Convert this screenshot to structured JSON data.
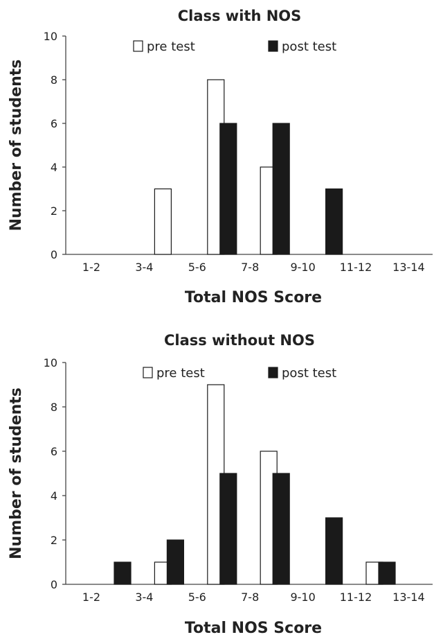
{
  "chart_data": [
    {
      "type": "bar",
      "title": "Class with NOS",
      "xlabel": "Total NOS Score",
      "ylabel": "Number of students",
      "categories": [
        "1-2",
        "3-4",
        "5-6",
        "7-8",
        "9-10",
        "11-12",
        "13-14"
      ],
      "ylim": [
        0,
        10
      ],
      "yticks": [
        0,
        2,
        4,
        6,
        8,
        10
      ],
      "grid": false,
      "legend_position": "top",
      "series": [
        {
          "name": "pre test",
          "fill": "#ffffff",
          "values": [
            0,
            3,
            8,
            4,
            0,
            0,
            0
          ]
        },
        {
          "name": "post test",
          "fill": "#1a1a1a",
          "values": [
            0,
            0,
            6,
            6,
            3,
            0,
            0
          ]
        }
      ]
    },
    {
      "type": "bar",
      "title": "Class without NOS",
      "xlabel": "Total NOS Score",
      "ylabel": "Number of students",
      "categories": [
        "1-2",
        "3-4",
        "5-6",
        "7-8",
        "9-10",
        "11-12",
        "13-14"
      ],
      "ylim": [
        0,
        10
      ],
      "yticks": [
        0,
        2,
        4,
        6,
        8,
        10
      ],
      "grid": false,
      "legend_position": "top",
      "series": [
        {
          "name": "pre test",
          "fill": "#ffffff",
          "values": [
            0,
            1,
            9,
            6,
            0,
            1,
            0
          ]
        },
        {
          "name": "post test",
          "fill": "#1a1a1a",
          "values": [
            1,
            2,
            5,
            5,
            3,
            1,
            0
          ]
        }
      ]
    }
  ]
}
